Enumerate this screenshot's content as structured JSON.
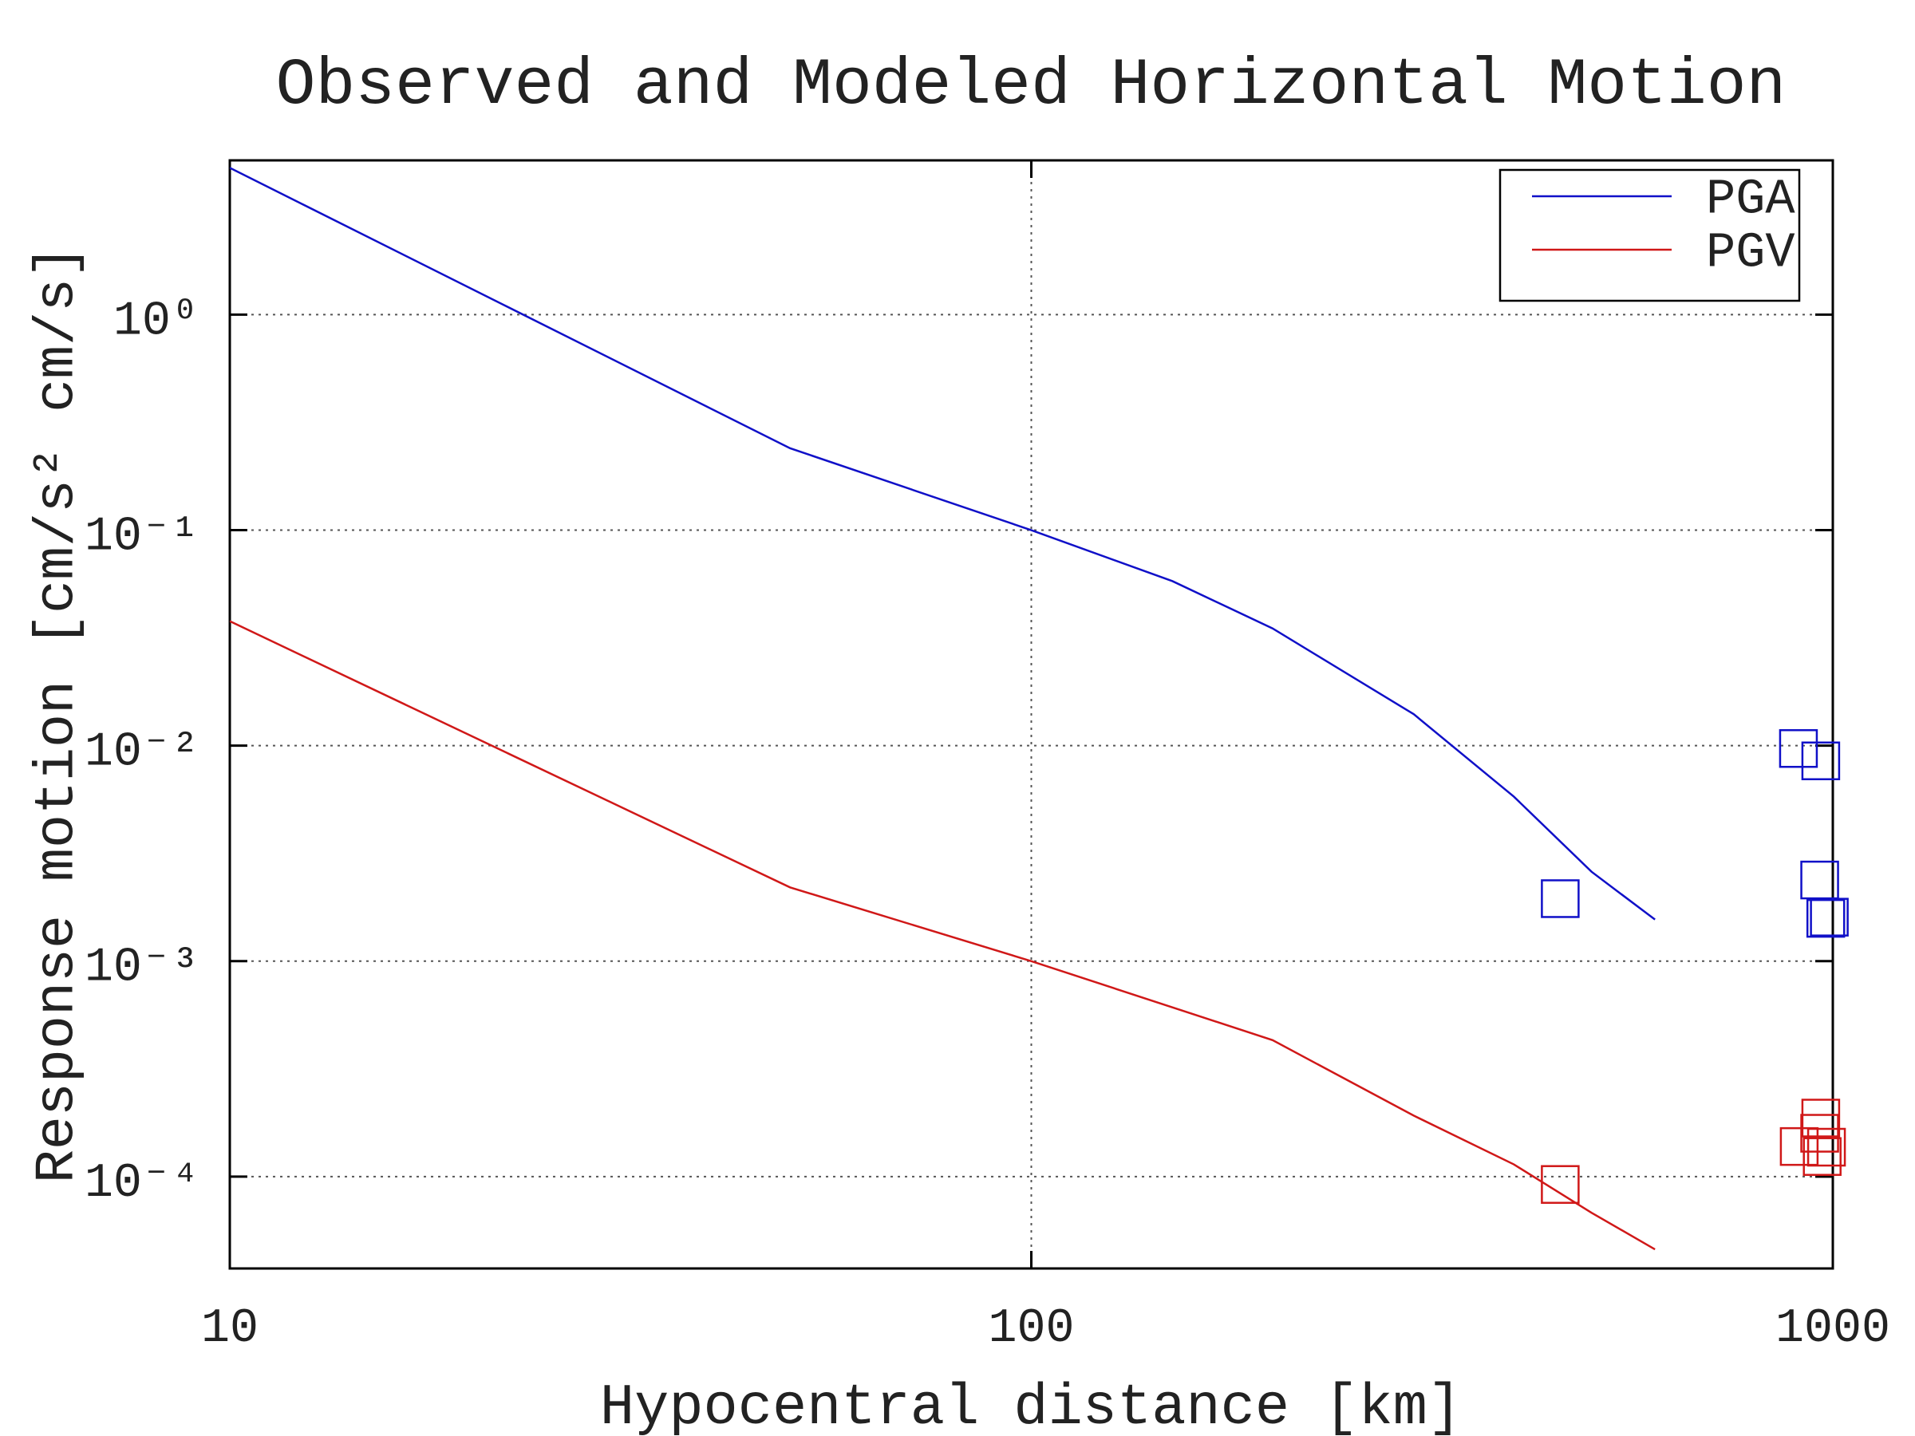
{
  "chart_data": {
    "type": "line",
    "title": "Observed and Modeled Horizontal Motion",
    "xlabel": "Hypocentral distance [km]",
    "ylabel": "Response motion  [cm/s²  cm/s]",
    "xscale": "log",
    "yscale": "log",
    "xlim": [
      10,
      1000
    ],
    "ylim": [
      3.75e-05,
      5.2
    ],
    "xticks": [
      10,
      100,
      1000
    ],
    "yticks": [
      {
        "value": 1,
        "label": "10⁰"
      },
      {
        "value": 0.1,
        "label": "10⁻¹"
      },
      {
        "value": 0.01,
        "label": "10⁻²"
      },
      {
        "value": 0.001,
        "label": "10⁻³"
      },
      {
        "value": 0.0001,
        "label": "10⁻⁴"
      }
    ],
    "grid": true,
    "legend": "upper right",
    "series": [
      {
        "name": "PGA",
        "color": "#1010c8",
        "x": [
          10,
          50,
          100,
          150,
          200,
          300,
          400,
          500,
          600
        ],
        "values": [
          4.8,
          0.24,
          0.1,
          0.058,
          0.035,
          0.014,
          0.0058,
          0.0026,
          0.00156
        ],
        "observed": {
          "x": [
            457,
            906,
            966,
            963,
            980,
            990
          ],
          "values": [
            0.00195,
            0.0097,
            0.0085,
            0.00238,
            0.00158,
            0.0016
          ]
        }
      },
      {
        "name": "PGV",
        "color": "#d01818",
        "x": [
          10,
          50,
          100,
          200,
          300,
          400,
          500,
          600
        ],
        "values": [
          0.0378,
          0.0022,
          0.001,
          0.00043,
          0.000192,
          0.000114,
          6.8e-05,
          4.6e-05
        ],
        "observed": {
          "x": [
            457,
            966,
            963,
            908,
            982,
            970
          ],
          "values": [
            9.2e-05,
            0.000187,
            0.000159,
            0.000138,
            0.000137,
            0.000124
          ]
        }
      }
    ]
  }
}
